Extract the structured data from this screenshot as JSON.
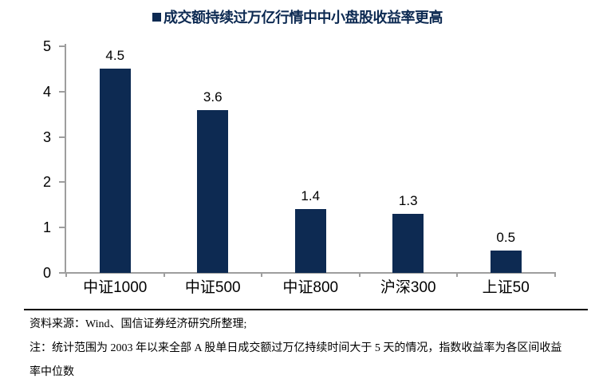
{
  "page": {
    "background": "#ffffff",
    "accent_navy": "#0d2a52",
    "axis_gray": "#9e9e9e"
  },
  "legend": {
    "swatch_icon": "filled-square",
    "label": "成交额持续过万亿行情中中小盘股收益率更高"
  },
  "chart_data": {
    "type": "bar",
    "title": "成交额持续过万亿行情中中小盘股收益率更高",
    "categories": [
      "中证1000",
      "中证500",
      "中证800",
      "沪深300",
      "上证50"
    ],
    "values": [
      4.5,
      3.6,
      1.4,
      1.3,
      0.5
    ],
    "data_labels": [
      "4.5",
      "3.6",
      "1.4",
      "1.3",
      "0.5"
    ],
    "xlabel": "",
    "ylabel": "",
    "ylim": [
      0,
      5
    ],
    "yticks": [
      0,
      1,
      2,
      3,
      4,
      5
    ],
    "bar_color": "#0d2a52",
    "axis_color": "#9e9e9e",
    "grid": false,
    "legend_position": "top-center"
  },
  "footer": {
    "source": "资料来源：Wind、国信证券经济研究所整理;",
    "note_line1": "注：统计范围为 2003 年以来全部 A 股单日成交额过万亿持续时间大于 5 天的情况，指数收益率为各区间收益",
    "note_line2": "率中位数"
  }
}
